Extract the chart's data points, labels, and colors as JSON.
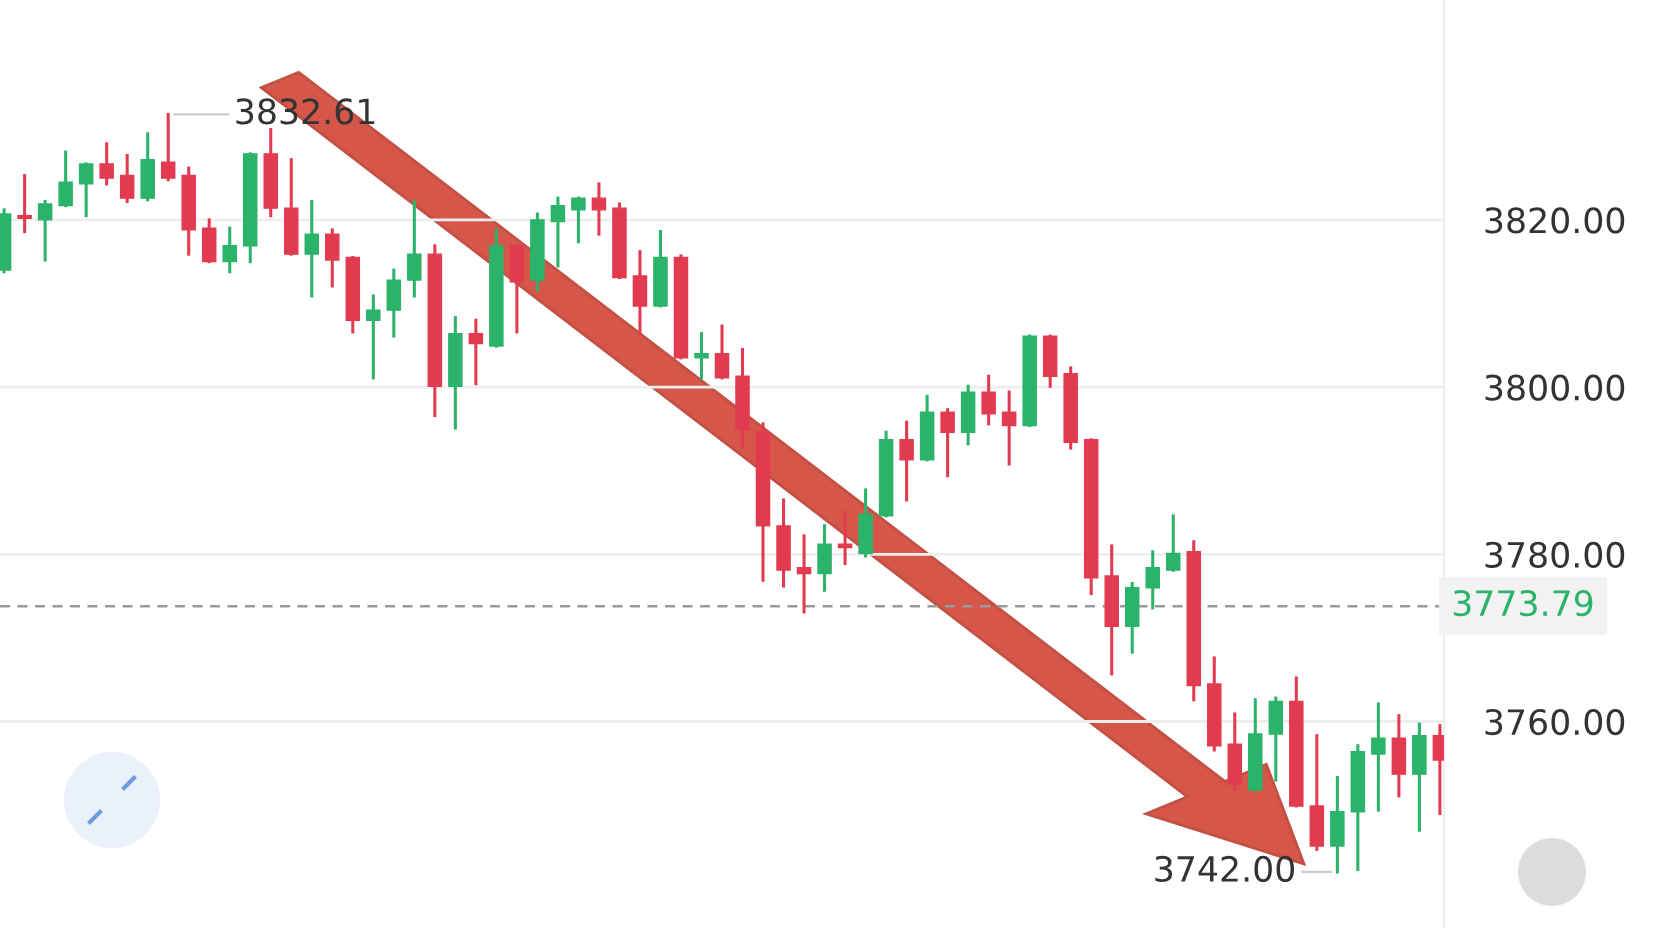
{
  "chart_data": {
    "type": "candlestick",
    "categories": [
      null,
      null,
      null,
      null,
      null,
      null,
      null,
      null,
      null,
      null,
      null,
      null,
      null,
      null,
      null,
      null,
      null,
      null,
      null,
      null,
      null,
      null,
      null,
      null,
      null,
      null,
      null,
      null,
      null,
      null,
      null,
      null,
      null,
      null,
      null,
      null,
      null,
      null,
      null,
      null,
      null,
      null,
      null,
      null,
      null,
      null,
      null,
      null,
      null,
      null,
      null,
      null,
      null,
      null,
      null,
      null,
      null,
      null,
      null,
      null,
      null,
      null,
      null,
      null,
      null,
      null,
      null,
      null,
      null,
      null,
      null
    ],
    "ohlc": [
      [
        3814.0,
        3821.2,
        3813.8,
        3820.7
      ],
      [
        3820.5,
        3825.3,
        3818.6,
        3820.2
      ],
      [
        3820.0,
        3822.2,
        3815.2,
        3821.9
      ],
      [
        3821.7,
        3828.1,
        3821.7,
        3824.5
      ],
      [
        3824.3,
        3826.7,
        3820.5,
        3826.7
      ],
      [
        3826.7,
        3829.1,
        3824.3,
        3825.0
      ],
      [
        3825.3,
        3827.7,
        3822.2,
        3822.6
      ],
      [
        3822.6,
        3830.3,
        3822.4,
        3827.2
      ],
      [
        3826.9,
        3832.61,
        3824.8,
        3825.0
      ],
      [
        3825.3,
        3826.2,
        3815.9,
        3818.8
      ],
      [
        3819.0,
        3820.0,
        3815.0,
        3815.0
      ],
      [
        3815.0,
        3819.0,
        3813.8,
        3816.9
      ],
      [
        3816.9,
        3827.9,
        3815.0,
        3827.9
      ],
      [
        3827.9,
        3830.8,
        3820.5,
        3821.4
      ],
      [
        3821.4,
        3827.2,
        3815.9,
        3815.9
      ],
      [
        3815.9,
        3822.2,
        3810.9,
        3818.3
      ],
      [
        3818.3,
        3818.8,
        3812.1,
        3815.2
      ],
      [
        3815.5,
        3815.5,
        3806.6,
        3808.0
      ],
      [
        3808.0,
        3810.9,
        3801.1,
        3809.2
      ],
      [
        3809.2,
        3814.0,
        3806.1,
        3812.8
      ],
      [
        3812.8,
        3822.2,
        3810.9,
        3815.9
      ],
      [
        3815.9,
        3816.9,
        3796.6,
        3800.1
      ],
      [
        3800.1,
        3808.3,
        3795.1,
        3806.4
      ],
      [
        3806.4,
        3808.0,
        3800.4,
        3805.2
      ],
      [
        3804.9,
        3818.8,
        3804.9,
        3816.9
      ],
      [
        3816.9,
        3816.9,
        3806.6,
        3812.6
      ],
      [
        3812.8,
        3820.7,
        3811.6,
        3820.0
      ],
      [
        3819.8,
        3822.6,
        3814.5,
        3821.7
      ],
      [
        3821.2,
        3822.6,
        3817.4,
        3822.6
      ],
      [
        3822.6,
        3824.3,
        3818.3,
        3821.2
      ],
      [
        3821.4,
        3821.9,
        3813.1,
        3813.1
      ],
      [
        3813.3,
        3816.2,
        3806.4,
        3809.7
      ],
      [
        3809.7,
        3818.6,
        3809.7,
        3815.5
      ],
      [
        3815.5,
        3815.7,
        3803.5,
        3803.5
      ],
      [
        3803.5,
        3806.4,
        3801.1,
        3804.0
      ],
      [
        3804.0,
        3807.3,
        3801.1,
        3801.1
      ],
      [
        3801.3,
        3804.5,
        3793.0,
        3794.9
      ],
      [
        3794.6,
        3795.6,
        3776.9,
        3783.4
      ],
      [
        3783.4,
        3786.5,
        3776.2,
        3778.1
      ],
      [
        3778.4,
        3782.2,
        3773.1,
        3777.7
      ],
      [
        3777.7,
        3783.4,
        3775.7,
        3781.2
      ],
      [
        3781.2,
        3785.1,
        3778.9,
        3780.8
      ],
      [
        3780.1,
        3787.7,
        3779.8,
        3784.8
      ],
      [
        3784.6,
        3794.6,
        3784.6,
        3793.7
      ],
      [
        3793.7,
        3795.8,
        3786.5,
        3791.3
      ],
      [
        3791.3,
        3798.9,
        3791.3,
        3797.0
      ],
      [
        3797.0,
        3797.3,
        3789.4,
        3794.6
      ],
      [
        3794.6,
        3800.1,
        3793.2,
        3799.4
      ],
      [
        3799.4,
        3801.3,
        3795.6,
        3796.8
      ],
      [
        3797.0,
        3799.4,
        3790.8,
        3795.4
      ],
      [
        3795.4,
        3806.1,
        3795.4,
        3806.1
      ],
      [
        3806.1,
        3806.1,
        3800.1,
        3801.3
      ],
      [
        3801.6,
        3802.3,
        3792.7,
        3793.4
      ],
      [
        3793.7,
        3793.7,
        3775.3,
        3777.2
      ],
      [
        3777.4,
        3781.0,
        3765.7,
        3771.4
      ],
      [
        3771.4,
        3776.5,
        3768.3,
        3776.0
      ],
      [
        3776.0,
        3780.3,
        3773.6,
        3778.4
      ],
      [
        3778.1,
        3784.6,
        3778.1,
        3780.1
      ],
      [
        3780.3,
        3781.5,
        3762.6,
        3764.3
      ],
      [
        3764.5,
        3767.6,
        3756.6,
        3757.1
      ],
      [
        3757.3,
        3760.9,
        3751.8,
        3752.5
      ],
      [
        3751.8,
        3762.6,
        3751.8,
        3758.5
      ],
      [
        3758.5,
        3762.8,
        3753.0,
        3762.4
      ],
      [
        3762.4,
        3765.2,
        3749.9,
        3749.9
      ],
      [
        3749.9,
        3758.3,
        3744.7,
        3745.1
      ],
      [
        3745.1,
        3753.3,
        3742.0,
        3749.2
      ],
      [
        3749.2,
        3757.1,
        3742.3,
        3756.4
      ],
      [
        3756.1,
        3762.1,
        3749.4,
        3758.0
      ],
      [
        3758.0,
        3760.7,
        3751.1,
        3753.7
      ],
      [
        3753.7,
        3759.7,
        3747.0,
        3758.3
      ],
      [
        3758.3,
        3759.5,
        3749.0,
        3755.4
      ]
    ],
    "colors": [
      "#2bb36a",
      "#e23b50",
      "#2bb36a",
      "#2bb36a",
      "#2bb36a",
      "#e23b50",
      "#e23b50",
      "#2bb36a",
      "#e23b50",
      "#e23b50",
      "#e23b50",
      "#2bb36a",
      "#2bb36a",
      "#e23b50",
      "#e23b50",
      "#2bb36a",
      "#e23b50",
      "#e23b50",
      "#2bb36a",
      "#2bb36a",
      "#2bb36a",
      "#e23b50",
      "#2bb36a",
      "#e23b50",
      "#2bb36a",
      "#e23b50",
      "#2bb36a",
      "#2bb36a",
      "#2bb36a",
      "#e23b50",
      "#e23b50",
      "#e23b50",
      "#2bb36a",
      "#e23b50",
      "#2bb36a",
      "#e23b50",
      "#e23b50",
      "#e23b50",
      "#e23b50",
      "#e23b50",
      "#2bb36a",
      "#e23b50",
      "#2bb36a",
      "#2bb36a",
      "#e23b50",
      "#2bb36a",
      "#e23b50",
      "#2bb36a",
      "#e23b50",
      "#e23b50",
      "#2bb36a",
      "#e23b50",
      "#e23b50",
      "#e23b50",
      "#e23b50",
      "#2bb36a",
      "#2bb36a",
      "#2bb36a",
      "#e23b50",
      "#e23b50",
      "#e23b50",
      "#2bb36a",
      "#2bb36a",
      "#e23b50",
      "#e23b50",
      "#2bb36a",
      "#2bb36a",
      "#2bb36a",
      "#e23b50",
      "#2bb36a",
      "#e23b50"
    ],
    "ylim": [
      3735.3,
      3846.3
    ],
    "yticks": [
      {
        "value": 3760,
        "label": "3760.00"
      },
      {
        "value": 3780,
        "label": "3780.00"
      },
      {
        "value": 3800,
        "label": "3800.00"
      },
      {
        "value": 3820,
        "label": "3820.00"
      }
    ],
    "grid": "y",
    "tick_labels": "y",
    "ref_lines": [
      {
        "axis": "y",
        "value": 3773.79,
        "label": "3773.79",
        "color": "#9a9a9a",
        "line_style": "dashed"
      }
    ],
    "annotations": [
      "3832.61",
      "3742.00"
    ]
  }
}
